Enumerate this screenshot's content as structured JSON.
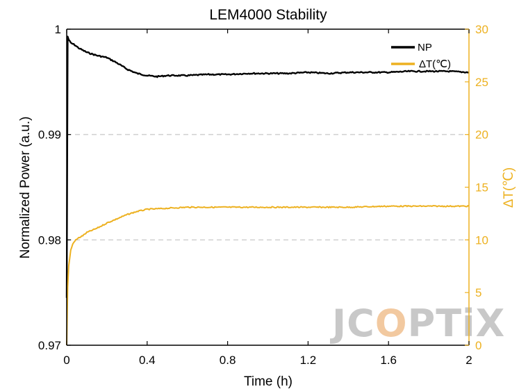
{
  "chart_data": {
    "type": "line",
    "title": "LEM4000 Stability",
    "xlabel": "Time (h)",
    "ylabel": "Normalized Power (a.u.)",
    "y2label": "ΔT(℃)",
    "xlim": [
      0,
      2
    ],
    "ylim": [
      0.97,
      1.0
    ],
    "y2lim": [
      0,
      30
    ],
    "xticks": [
      "0",
      "0.4",
      "0.8",
      "1.2",
      "1.6",
      "2"
    ],
    "xtick_values": [
      0,
      0.4,
      0.8,
      1.2,
      1.6,
      2
    ],
    "yticks": [
      "0.97",
      "0.98",
      "0.99",
      "1"
    ],
    "ytick_values": [
      0.97,
      0.98,
      0.99,
      1.0
    ],
    "y2ticks": [
      "0",
      "5",
      "10",
      "15",
      "20",
      "25",
      "30"
    ],
    "y2tick_values": [
      0,
      5,
      10,
      15,
      20,
      25,
      30
    ],
    "grid": "dashed horizontal lines at 0.98 and 0.99",
    "legend_position": "top-right",
    "series": [
      {
        "name": "NP",
        "axis": "left",
        "color": "#000000",
        "x": [
          0,
          0.005,
          0.01,
          0.02,
          0.04,
          0.06,
          0.08,
          0.1,
          0.15,
          0.2,
          0.25,
          0.3,
          0.35,
          0.4,
          0.45,
          0.5,
          0.6,
          0.7,
          0.8,
          0.9,
          1.0,
          1.1,
          1.2,
          1.3,
          1.4,
          1.5,
          1.6,
          1.7,
          1.8,
          1.9,
          2.0
        ],
        "y": [
          0.9745,
          0.9993,
          0.999,
          0.9987,
          0.9985,
          0.9982,
          0.998,
          0.9978,
          0.9975,
          0.9973,
          0.9968,
          0.9962,
          0.9958,
          0.9956,
          0.9955,
          0.9956,
          0.9956,
          0.9957,
          0.9957,
          0.9958,
          0.9958,
          0.9958,
          0.9959,
          0.9958,
          0.9959,
          0.9959,
          0.9959,
          0.996,
          0.996,
          0.996,
          0.9959
        ]
      },
      {
        "name": "ΔT(℃)",
        "axis": "right",
        "color": "#EDB120",
        "x": [
          0,
          0.005,
          0.01,
          0.02,
          0.03,
          0.04,
          0.06,
          0.08,
          0.1,
          0.15,
          0.2,
          0.25,
          0.3,
          0.35,
          0.4,
          0.5,
          0.6,
          0.7,
          0.8,
          0.9,
          1.0,
          1.2,
          1.4,
          1.6,
          1.8,
          2.0
        ],
        "y": [
          0,
          5.5,
          7.5,
          9.0,
          9.6,
          9.9,
          10.2,
          10.4,
          10.7,
          11.1,
          11.6,
          12.0,
          12.4,
          12.7,
          12.9,
          13.0,
          13.1,
          13.1,
          13.1,
          13.1,
          13.1,
          13.1,
          13.1,
          13.2,
          13.2,
          13.2
        ]
      }
    ]
  },
  "watermark": {
    "text_before": "JC",
    "text_highlight": "O",
    "text_after": "PTiX",
    "color_main": "#c8c8c8",
    "color_highlight": "#f2c9a0"
  }
}
